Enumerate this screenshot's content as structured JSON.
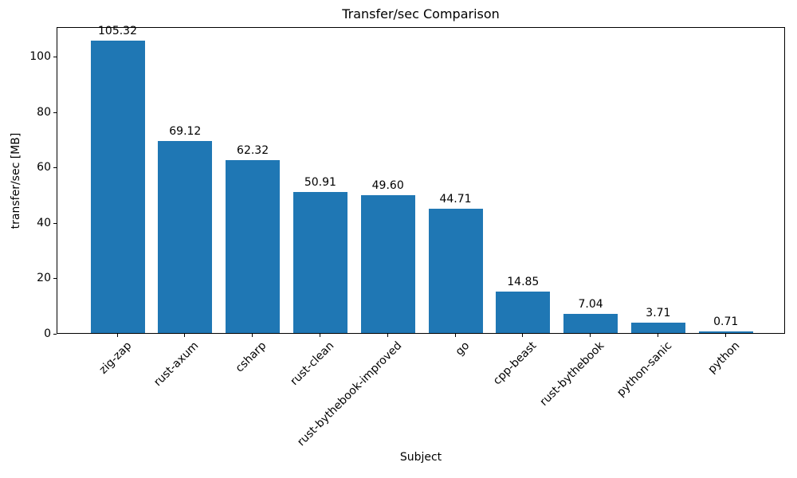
{
  "title": "Transfer/sec Comparison",
  "chart_data": {
    "type": "bar",
    "title": "Transfer/sec Comparison",
    "xlabel": "Subject",
    "ylabel": "transfer/sec [MB]",
    "categories": [
      "zig-zap",
      "rust-axum",
      "csharp",
      "rust-clean",
      "rust-bythebook-improved",
      "go",
      "cpp-beast",
      "rust-bythebook",
      "python-sanic",
      "python"
    ],
    "values": [
      105.32,
      69.12,
      62.32,
      50.91,
      49.6,
      44.71,
      14.85,
      7.04,
      3.71,
      0.71
    ],
    "value_labels": [
      "105.32",
      "69.12",
      "62.32",
      "50.91",
      "49.60",
      "44.71",
      "14.85",
      "7.04",
      "3.71",
      "0.71"
    ],
    "ylim": [
      0,
      110.6
    ],
    "yticks": [
      0,
      20,
      40,
      60,
      80,
      100
    ],
    "bar_color": "#1f77b4",
    "grid": false,
    "legend": "none",
    "x_tick_rotation_deg": 45
  }
}
